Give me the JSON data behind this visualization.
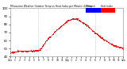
{
  "background_color": "#ffffff",
  "plot_bg_color": "#ffffff",
  "text_color": "#000000",
  "dot_color": "#ff0000",
  "legend_temp_color": "#0000ff",
  "legend_heat_color": "#ff0000",
  "legend_temp_label": "Temp",
  "legend_heat_label": "Heat Index",
  "xlim": [
    0,
    1440
  ],
  "ylim": [
    40,
    100
  ],
  "yticks": [
    40,
    50,
    60,
    70,
    80,
    90,
    100
  ],
  "xticks": [
    0,
    60,
    120,
    180,
    240,
    300,
    360,
    420,
    480,
    540,
    600,
    660,
    720,
    780,
    840,
    900,
    960,
    1020,
    1080,
    1140,
    1200,
    1260,
    1320,
    1380,
    1440
  ],
  "xtick_labels": [
    "12a",
    "1",
    "2",
    "3",
    "4",
    "5",
    "6",
    "7",
    "8",
    "9",
    "10",
    "11",
    "12p",
    "1",
    "2",
    "3",
    "4",
    "5",
    "6",
    "7",
    "8",
    "9",
    "10",
    "11",
    "12a"
  ],
  "vlines": [
    360,
    1080
  ],
  "vline_color": "#aaaaaa",
  "temp_x": [
    0,
    60,
    120,
    180,
    240,
    300,
    360,
    390,
    420,
    480,
    540,
    600,
    660,
    700,
    720,
    750,
    780,
    810,
    840,
    870,
    900,
    960,
    1020,
    1080,
    1140,
    1200,
    1260,
    1320,
    1380,
    1440
  ],
  "temp_y": [
    45,
    46,
    47,
    47,
    47,
    47,
    48,
    50,
    55,
    62,
    68,
    74,
    79,
    82,
    84,
    86,
    87,
    87,
    87,
    86,
    84,
    80,
    75,
    70,
    65,
    61,
    57,
    54,
    52,
    51
  ]
}
